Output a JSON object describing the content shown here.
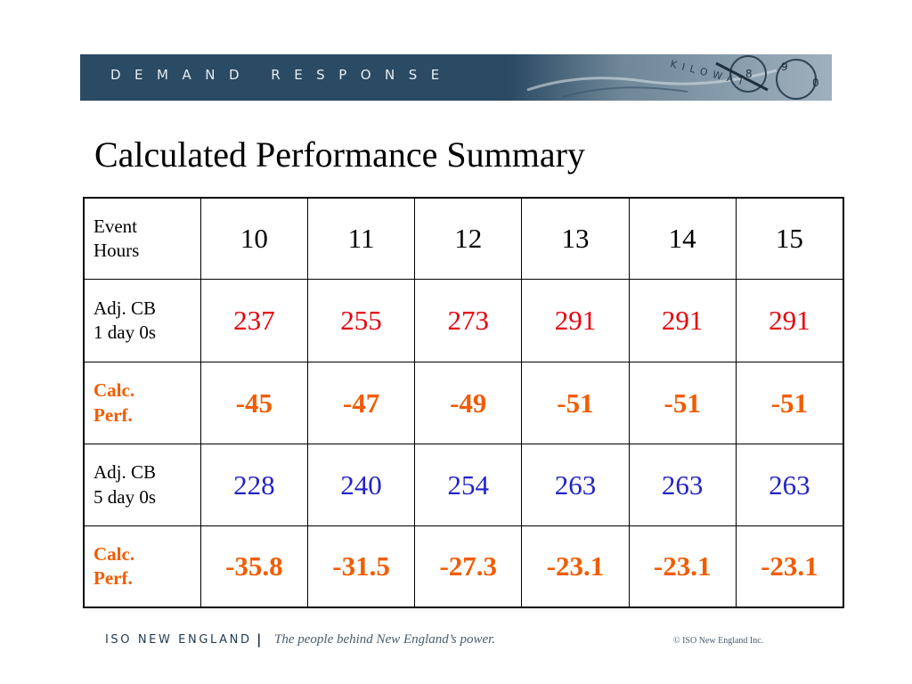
{
  "banner": {
    "text": "DEMAND RESPONSE",
    "art_text": "KILOWAT"
  },
  "title": "Calculated Performance Summary",
  "table": {
    "header": {
      "label_line1": "Event",
      "label_line2": "Hours",
      "values": [
        "10",
        "11",
        "12",
        "13",
        "14",
        "15"
      ]
    },
    "rows": [
      {
        "label_line1": "Adj. CB",
        "label_line2": "1 day 0s",
        "values": [
          "237",
          "255",
          "273",
          "291",
          "291",
          "291"
        ]
      },
      {
        "label_line1": "Calc.",
        "label_line2": "Perf.",
        "values": [
          "-45",
          "-47",
          "-49",
          "-51",
          "-51",
          "-51"
        ]
      },
      {
        "label_line1": "Adj. CB",
        "label_line2": "5 day 0s",
        "values": [
          "228",
          "240",
          "254",
          "263",
          "263",
          "263"
        ]
      },
      {
        "label_line1": "Calc.",
        "label_line2": "Perf.",
        "values": [
          "-35.8",
          "-31.5",
          "-27.3",
          "-23.1",
          "-23.1",
          "-23.1"
        ]
      }
    ]
  },
  "footer": {
    "org": "ISO NEW ENGLAND",
    "separator": "|",
    "tagline": "The people behind New England’s power.",
    "copyright": "© ISO New England Inc."
  },
  "colors": {
    "banner_bg": "#2b4a63",
    "baseline_values": "#e8000b",
    "calc_perf": "#f25c00",
    "baseline_5day_values": "#2323c8"
  },
  "icons": [
    "kilowatt-meter-icon"
  ]
}
